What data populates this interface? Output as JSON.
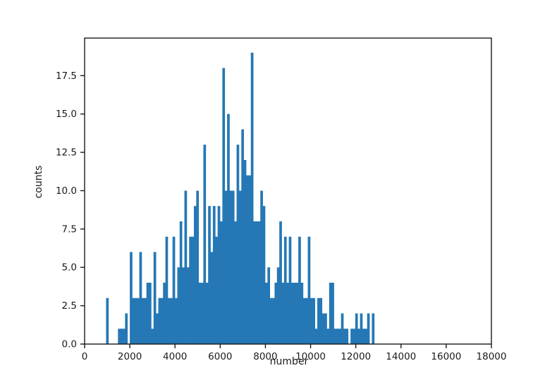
{
  "figure": {
    "background_color": "#ffffff",
    "spine_color": "#1a1a1a",
    "tick_label_color": "#1a1a1a"
  },
  "chart_data": {
    "type": "bar",
    "subtype": "histogram",
    "title": "",
    "xlabel": "number",
    "ylabel": "counts",
    "xlim": [
      0,
      18000
    ],
    "ylim": [
      0,
      19.95
    ],
    "grid": false,
    "legend": "none",
    "bar_color": "#2578b5",
    "x_tick_labels": [
      "0",
      "2000",
      "4000",
      "6000",
      "8000",
      "10000",
      "12000",
      "14000",
      "16000",
      "18000"
    ],
    "x_tick_values": [
      0,
      2000,
      4000,
      6000,
      8000,
      10000,
      12000,
      14000,
      16000,
      18000
    ],
    "y_tick_labels": [
      "0.0",
      "2.5",
      "5.0",
      "7.5",
      "10.0",
      "12.5",
      "15.0",
      "17.5"
    ],
    "y_tick_values": [
      0,
      2.5,
      5,
      7.5,
      10,
      12.5,
      15,
      17.5
    ],
    "bin_start": 950,
    "bin_width": 105,
    "counts": [
      3,
      0,
      0,
      0,
      0,
      1,
      1,
      1,
      2,
      0,
      6,
      3,
      3,
      3,
      6,
      3,
      3,
      4,
      4,
      1,
      6,
      2,
      3,
      3,
      4,
      7,
      3,
      3,
      7,
      3,
      5,
      8,
      5,
      10,
      5,
      7,
      7,
      9,
      10,
      4,
      4,
      13,
      4,
      9,
      6,
      9,
      7,
      9,
      8,
      18,
      10,
      15,
      10,
      10,
      8,
      13,
      10,
      14,
      12,
      11,
      11,
      19,
      8,
      8,
      8,
      10,
      9,
      4,
      5,
      3,
      3,
      4,
      5,
      8,
      4,
      7,
      4,
      7,
      4,
      4,
      4,
      7,
      4,
      3,
      3,
      7,
      3,
      3,
      1,
      3,
      3,
      2,
      2,
      1,
      4,
      4,
      1,
      1,
      1,
      2,
      1,
      1,
      0,
      1,
      1,
      2,
      1,
      2,
      1,
      1,
      2,
      0,
      2
    ]
  }
}
